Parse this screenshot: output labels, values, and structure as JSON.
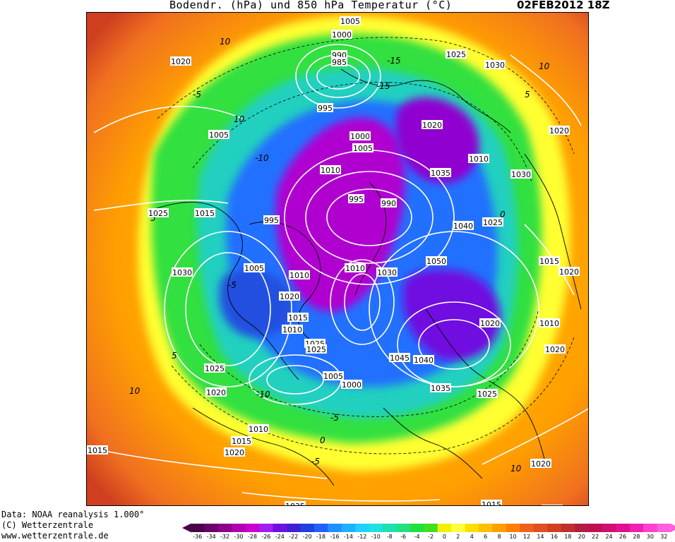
{
  "header": {
    "title": "Bodendr. (hPa) und 850 hPa Temperatur (°C)",
    "date": "02FEB2012 18Z"
  },
  "footer": {
    "source": "Data: NOAA reanalysis 1.000°",
    "copyright": "(C) Wetterzentrale",
    "website": "www.wetterzentrale.de"
  },
  "map": {
    "type": "polar-stereographic weather map",
    "pressure_unit": "hPa",
    "temperature_level": "850 hPa",
    "isobar_labels": [
      {
        "text": "1005"
      },
      {
        "text": "1000"
      },
      {
        "text": "990"
      },
      {
        "text": "985"
      },
      {
        "text": "1025"
      },
      {
        "text": "1030"
      },
      {
        "text": "1020"
      },
      {
        "text": "995"
      },
      {
        "text": "1020"
      },
      {
        "text": "1005"
      },
      {
        "text": "1000"
      },
      {
        "text": "1005"
      },
      {
        "text": "1010"
      },
      {
        "text": "1035"
      },
      {
        "text": "1010"
      },
      {
        "text": "1030"
      },
      {
        "text": "1020"
      },
      {
        "text": "1025"
      },
      {
        "text": "1015"
      },
      {
        "text": "995"
      },
      {
        "text": "995"
      },
      {
        "text": "990"
      },
      {
        "text": "1040"
      },
      {
        "text": "1025"
      },
      {
        "text": "1030"
      },
      {
        "text": "1015"
      },
      {
        "text": "1020"
      },
      {
        "text": "1005"
      },
      {
        "text": "1010"
      },
      {
        "text": "1030"
      },
      {
        "text": "1050"
      },
      {
        "text": "1020"
      },
      {
        "text": "1015"
      },
      {
        "text": "1010"
      },
      {
        "text": "1025"
      },
      {
        "text": "1025"
      },
      {
        "text": "1045"
      },
      {
        "text": "1040"
      },
      {
        "text": "1005"
      },
      {
        "text": "1025"
      },
      {
        "text": "1020"
      },
      {
        "text": "1035"
      },
      {
        "text": "1025"
      },
      {
        "text": "1020"
      },
      {
        "text": "1010"
      },
      {
        "text": "1015"
      },
      {
        "text": "1020"
      },
      {
        "text": "1015"
      },
      {
        "text": "1020"
      },
      {
        "text": "1025"
      },
      {
        "text": "1015"
      },
      {
        "text": "1010"
      },
      {
        "text": "1010"
      },
      {
        "text": "1000"
      },
      {
        "text": "1020"
      },
      {
        "text": "1010"
      }
    ],
    "temperature_contour_labels": [
      "10",
      "10",
      "-10",
      "-15",
      "-5",
      "5",
      "0",
      "-5",
      "-10",
      "5",
      "10",
      "-15",
      "-5",
      "5",
      "0",
      "-5",
      "10",
      "10"
    ]
  },
  "legend": {
    "unit": "°C",
    "ticks": [
      "-36",
      "-34",
      "-32",
      "-30",
      "-28",
      "-26",
      "-24",
      "-22",
      "-20",
      "-18",
      "-16",
      "-14",
      "-12",
      "-10",
      "-8",
      "-6",
      "-4",
      "-2",
      "0",
      "2",
      "4",
      "6",
      "8",
      "10",
      "12",
      "14",
      "16",
      "18",
      "20",
      "22",
      "24",
      "26",
      "28",
      "30",
      "32"
    ],
    "colors": [
      "#4a004a",
      "#6a006a",
      "#8c008c",
      "#b000b0",
      "#cc00cc",
      "#a020f0",
      "#7010e0",
      "#4020d0",
      "#2040e0",
      "#2060ff",
      "#2090ff",
      "#20b0ff",
      "#20d0ff",
      "#20e0e0",
      "#20e0b0",
      "#20e080",
      "#20e040",
      "#40e020",
      "#f0f000",
      "#ffff40",
      "#ffe000",
      "#ffc000",
      "#ffa000",
      "#ff8000",
      "#f06020",
      "#e05020",
      "#d04020",
      "#c03030",
      "#b02040",
      "#c01050",
      "#d01070",
      "#e01090",
      "#f020b0",
      "#ff40d0",
      "#ff60e0"
    ]
  },
  "colors": {
    "isobar": "#ffffff",
    "label_bg": "#ffffff",
    "coast": "#000000"
  }
}
